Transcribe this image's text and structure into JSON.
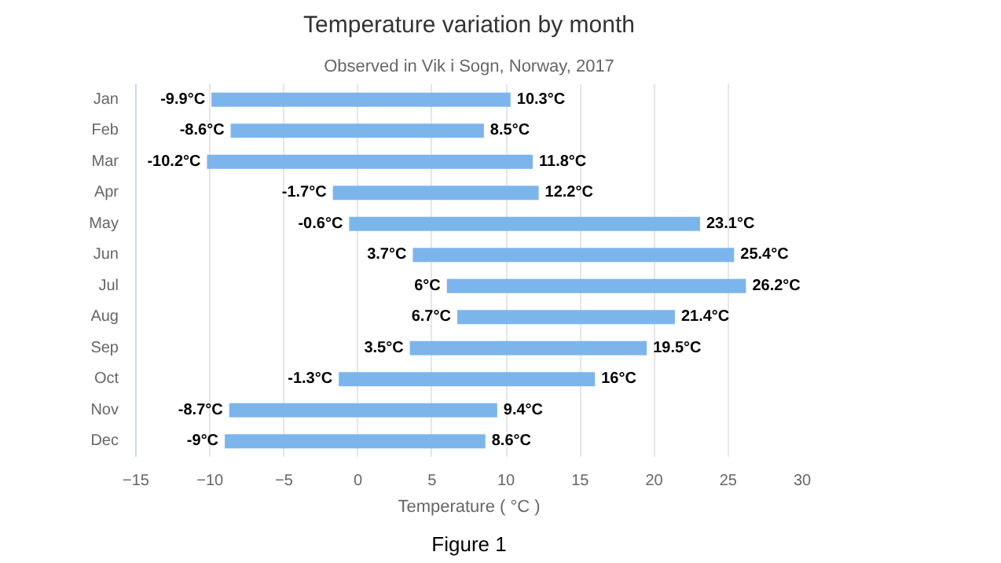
{
  "chart_data": {
    "type": "bar",
    "orientation": "horizontal",
    "title": "Temperature variation by month",
    "subtitle": "Observed in Vik i Sogn, Norway, 2017",
    "xlabel": "Temperature ( °C )",
    "categories": [
      "Jan",
      "Feb",
      "Mar",
      "Apr",
      "May",
      "Jun",
      "Jul",
      "Aug",
      "Sep",
      "Oct",
      "Nov",
      "Dec"
    ],
    "base": [
      -9.9,
      -8.6,
      -10.2,
      -1.7,
      -0.6,
      3.7,
      6,
      6.7,
      3.5,
      -1.3,
      -8.7,
      -9
    ],
    "values": [
      20.2,
      17.1,
      22.0,
      13.9,
      23.7,
      21.7,
      20.2,
      14.7,
      16.0,
      17.3,
      18.1,
      17.6
    ],
    "color": "#7cb5ec",
    "xlim": [
      -15,
      30
    ],
    "xticks": [
      {
        "value": -15,
        "label": "−15"
      },
      {
        "value": -10,
        "label": "−10"
      },
      {
        "value": -5,
        "label": "−5"
      },
      0,
      5,
      10,
      15,
      20,
      25,
      30
    ],
    "grid": "x",
    "annotations": [
      {
        "text": "-9.9°C",
        "x": -9.9,
        "y": "Jan"
      },
      {
        "text": "10.3°C",
        "x": 10.3,
        "y": "Jan"
      },
      {
        "text": "-8.6°C",
        "x": -8.6,
        "y": "Feb"
      },
      {
        "text": "8.5°C",
        "x": 8.5,
        "y": "Feb"
      },
      {
        "text": "-10.2°C",
        "x": -10.2,
        "y": "Mar"
      },
      {
        "text": "11.8°C",
        "x": 11.8,
        "y": "Mar"
      },
      {
        "text": "-1.7°C",
        "x": -1.7,
        "y": "Apr"
      },
      {
        "text": "12.2°C",
        "x": 12.2,
        "y": "Apr"
      },
      {
        "text": "-0.6°C",
        "x": -0.6,
        "y": "May"
      },
      {
        "text": "23.1°C",
        "x": 23.1,
        "y": "May"
      },
      {
        "text": "3.7°C",
        "x": 3.7,
        "y": "Jun"
      },
      {
        "text": "25.4°C",
        "x": 25.4,
        "y": "Jun"
      },
      {
        "text": "6°C",
        "x": 6,
        "y": "Jul"
      },
      {
        "text": "26.2°C",
        "x": 26.2,
        "y": "Jul"
      },
      {
        "text": "6.7°C",
        "x": 6.7,
        "y": "Aug"
      },
      {
        "text": "21.4°C",
        "x": 21.4,
        "y": "Aug"
      },
      {
        "text": "3.5°C",
        "x": 3.5,
        "y": "Sep"
      },
      {
        "text": "19.5°C",
        "x": 19.5,
        "y": "Sep"
      },
      {
        "text": "-1.3°C",
        "x": -1.3,
        "y": "Oct"
      },
      {
        "text": "16°C",
        "x": 16,
        "y": "Oct"
      },
      {
        "text": "-8.7°C",
        "x": -8.7,
        "y": "Nov"
      },
      {
        "text": "9.4°C",
        "x": 9.4,
        "y": "Nov"
      },
      {
        "text": "-9°C",
        "x": -9,
        "y": "Dec"
      },
      {
        "text": "8.6°C",
        "x": 8.6,
        "y": "Dec"
      },
      "Figure 1"
    ]
  }
}
